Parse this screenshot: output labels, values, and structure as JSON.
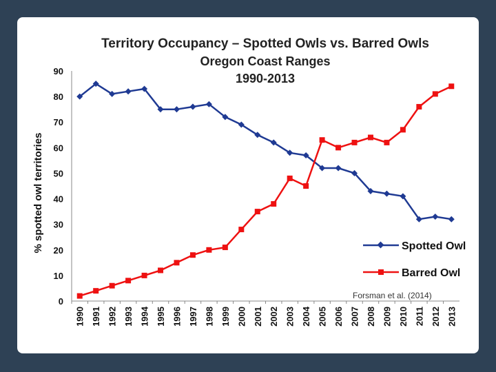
{
  "chart_data": {
    "type": "line",
    "title": "Territory Occupancy – Spotted Owls vs. Barred Owls",
    "subtitle": "Oregon Coast Ranges",
    "subtitle2": "1990-2013",
    "ylabel": "% spotted owl territories",
    "xlabel": "",
    "ylim": [
      0,
      90
    ],
    "yticks": [
      "0",
      "10",
      "20",
      "30",
      "40",
      "50",
      "60",
      "70",
      "80",
      "90"
    ],
    "x": [
      "1990",
      "1991",
      "1992",
      "1993",
      "1994",
      "1995",
      "1996",
      "1997",
      "1998",
      "1999",
      "2000",
      "2001",
      "2002",
      "2003",
      "2004",
      "2005",
      "2006",
      "2007",
      "2008",
      "2009",
      "2010",
      "2011",
      "2012",
      "2013"
    ],
    "series": [
      {
        "name": "Spotted Owl",
        "color": "#1f3a93",
        "marker": "diamond",
        "values": [
          80,
          85,
          81,
          82,
          83,
          75,
          75,
          76,
          77,
          72,
          69,
          65,
          62,
          58,
          57,
          52,
          52,
          50,
          43,
          42,
          41,
          32,
          33,
          32
        ]
      },
      {
        "name": "Barred Owl",
        "color": "#ee1111",
        "marker": "square",
        "values": [
          2,
          4,
          6,
          8,
          10,
          12,
          15,
          18,
          20,
          21,
          28,
          35,
          38,
          48,
          45,
          63,
          60,
          62,
          64,
          62,
          67,
          76,
          81,
          84
        ]
      }
    ],
    "legend": "right",
    "grid": false,
    "annotation": "Forsman et al. (2014)"
  }
}
